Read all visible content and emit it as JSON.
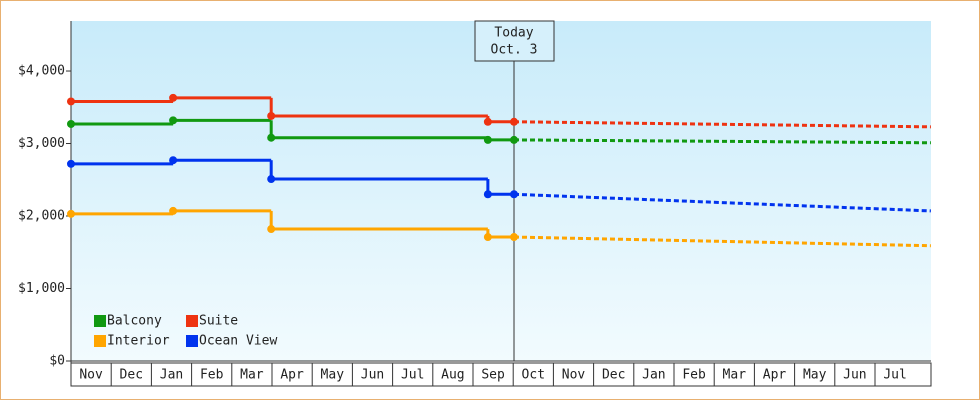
{
  "chart_data": {
    "type": "step-line",
    "categories": [
      "Nov",
      "Dec",
      "Jan",
      "Feb",
      "Mar",
      "Apr",
      "May",
      "Jun",
      "Jul",
      "Aug",
      "Sep",
      "Oct",
      "Nov",
      "Dec",
      "Jan",
      "Feb",
      "Mar",
      "Apr",
      "May",
      "Jun",
      "Jul"
    ],
    "xlim": [
      0,
      21.39
    ],
    "ylim": [
      0,
      4690
    ],
    "yticks": [
      {
        "value": 0,
        "label": "$0"
      },
      {
        "value": 1000,
        "label": "$1,000"
      },
      {
        "value": 2000,
        "label": "$2,000"
      },
      {
        "value": 3000,
        "label": "$3,000"
      },
      {
        "value": 4000,
        "label": "$4,000"
      }
    ],
    "today": {
      "x": 11.02,
      "label": "Today",
      "date": "Oct. 3"
    },
    "series": [
      {
        "name": "Balcony",
        "color": "#119911",
        "x": [
          0,
          2.54,
          4.98,
          10.37,
          11.02
        ],
        "values": [
          3270,
          3320,
          3080,
          3050,
          3050
        ],
        "forecast": {
          "x": [
            11.02,
            21.39
          ],
          "values": [
            3050,
            3010
          ]
        }
      },
      {
        "name": "Suite",
        "color": "#ee3311",
        "x": [
          0,
          2.54,
          4.98,
          10.37,
          11.02
        ],
        "values": [
          3580,
          3630,
          3380,
          3300,
          3300
        ],
        "forecast": {
          "x": [
            11.02,
            21.39
          ],
          "values": [
            3300,
            3230
          ]
        }
      },
      {
        "name": "Interior",
        "color": "#ffa500",
        "x": [
          0,
          2.54,
          4.98,
          10.37,
          11.02
        ],
        "values": [
          2030,
          2070,
          1820,
          1710,
          1710
        ],
        "forecast": {
          "x": [
            11.02,
            21.39
          ],
          "values": [
            1710,
            1590
          ]
        }
      },
      {
        "name": "Ocean View",
        "color": "#0033ee",
        "x": [
          0,
          2.54,
          4.98,
          10.37,
          11.02
        ],
        "values": [
          2720,
          2770,
          2510,
          2300,
          2300
        ],
        "forecast": {
          "x": [
            11.02,
            21.39
          ],
          "values": [
            2300,
            2070
          ]
        }
      }
    ]
  }
}
